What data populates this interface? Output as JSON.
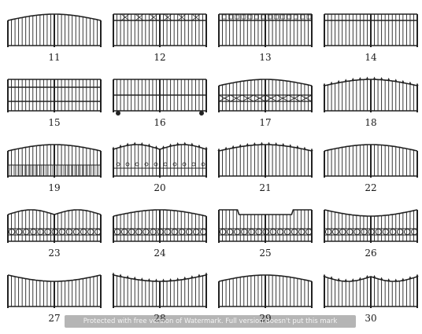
{
  "gates": [
    {
      "label": "11",
      "style": "arch-top",
      "arch": "arch",
      "base": "plain"
    },
    {
      "label": "12",
      "style": "x-frieze",
      "arch": "flat",
      "base": "plain"
    },
    {
      "label": "13",
      "style": "box-frieze",
      "arch": "flat",
      "base": "plain"
    },
    {
      "label": "14",
      "style": "flat-rail",
      "arch": "flat",
      "base": "plain"
    },
    {
      "label": "15",
      "style": "two-rails",
      "arch": "flat",
      "base": "plain"
    },
    {
      "label": "16",
      "style": "sliding",
      "arch": "flat",
      "base": "wheels"
    },
    {
      "label": "17",
      "style": "arch-x-band",
      "arch": "arch",
      "base": "plain"
    },
    {
      "label": "18",
      "style": "finial-arch",
      "arch": "arch",
      "base": "plain"
    },
    {
      "label": "19",
      "style": "arch-scroll",
      "arch": "arch",
      "base": "dense"
    },
    {
      "label": "20",
      "style": "swoop-finial",
      "arch": "swoop",
      "base": "scroll"
    },
    {
      "label": "21",
      "style": "finial-scroll",
      "arch": "arch",
      "base": "plain"
    },
    {
      "label": "22",
      "style": "big-arch",
      "arch": "arch",
      "base": "plain"
    },
    {
      "label": "23",
      "style": "rings-wave",
      "arch": "swoop",
      "base": "rings"
    },
    {
      "label": "24",
      "style": "rings-arch",
      "arch": "arch",
      "base": "rings"
    },
    {
      "label": "25",
      "style": "notch-top",
      "arch": "notch",
      "base": "rings"
    },
    {
      "label": "26",
      "style": "valley-rings",
      "arch": "valley",
      "base": "rings"
    },
    {
      "label": "27",
      "style": "valley-plain",
      "arch": "valley",
      "base": "plain"
    },
    {
      "label": "28",
      "style": "finial-valley",
      "arch": "valley",
      "base": "plain"
    },
    {
      "label": "29",
      "style": "gentle-arch",
      "arch": "arch",
      "base": "plain"
    },
    {
      "label": "30",
      "style": "finial-ridge",
      "arch": "ridge",
      "base": "plain"
    }
  ],
  "watermark": "Protected with free version of Watermark. Full version doesn't put this mark"
}
